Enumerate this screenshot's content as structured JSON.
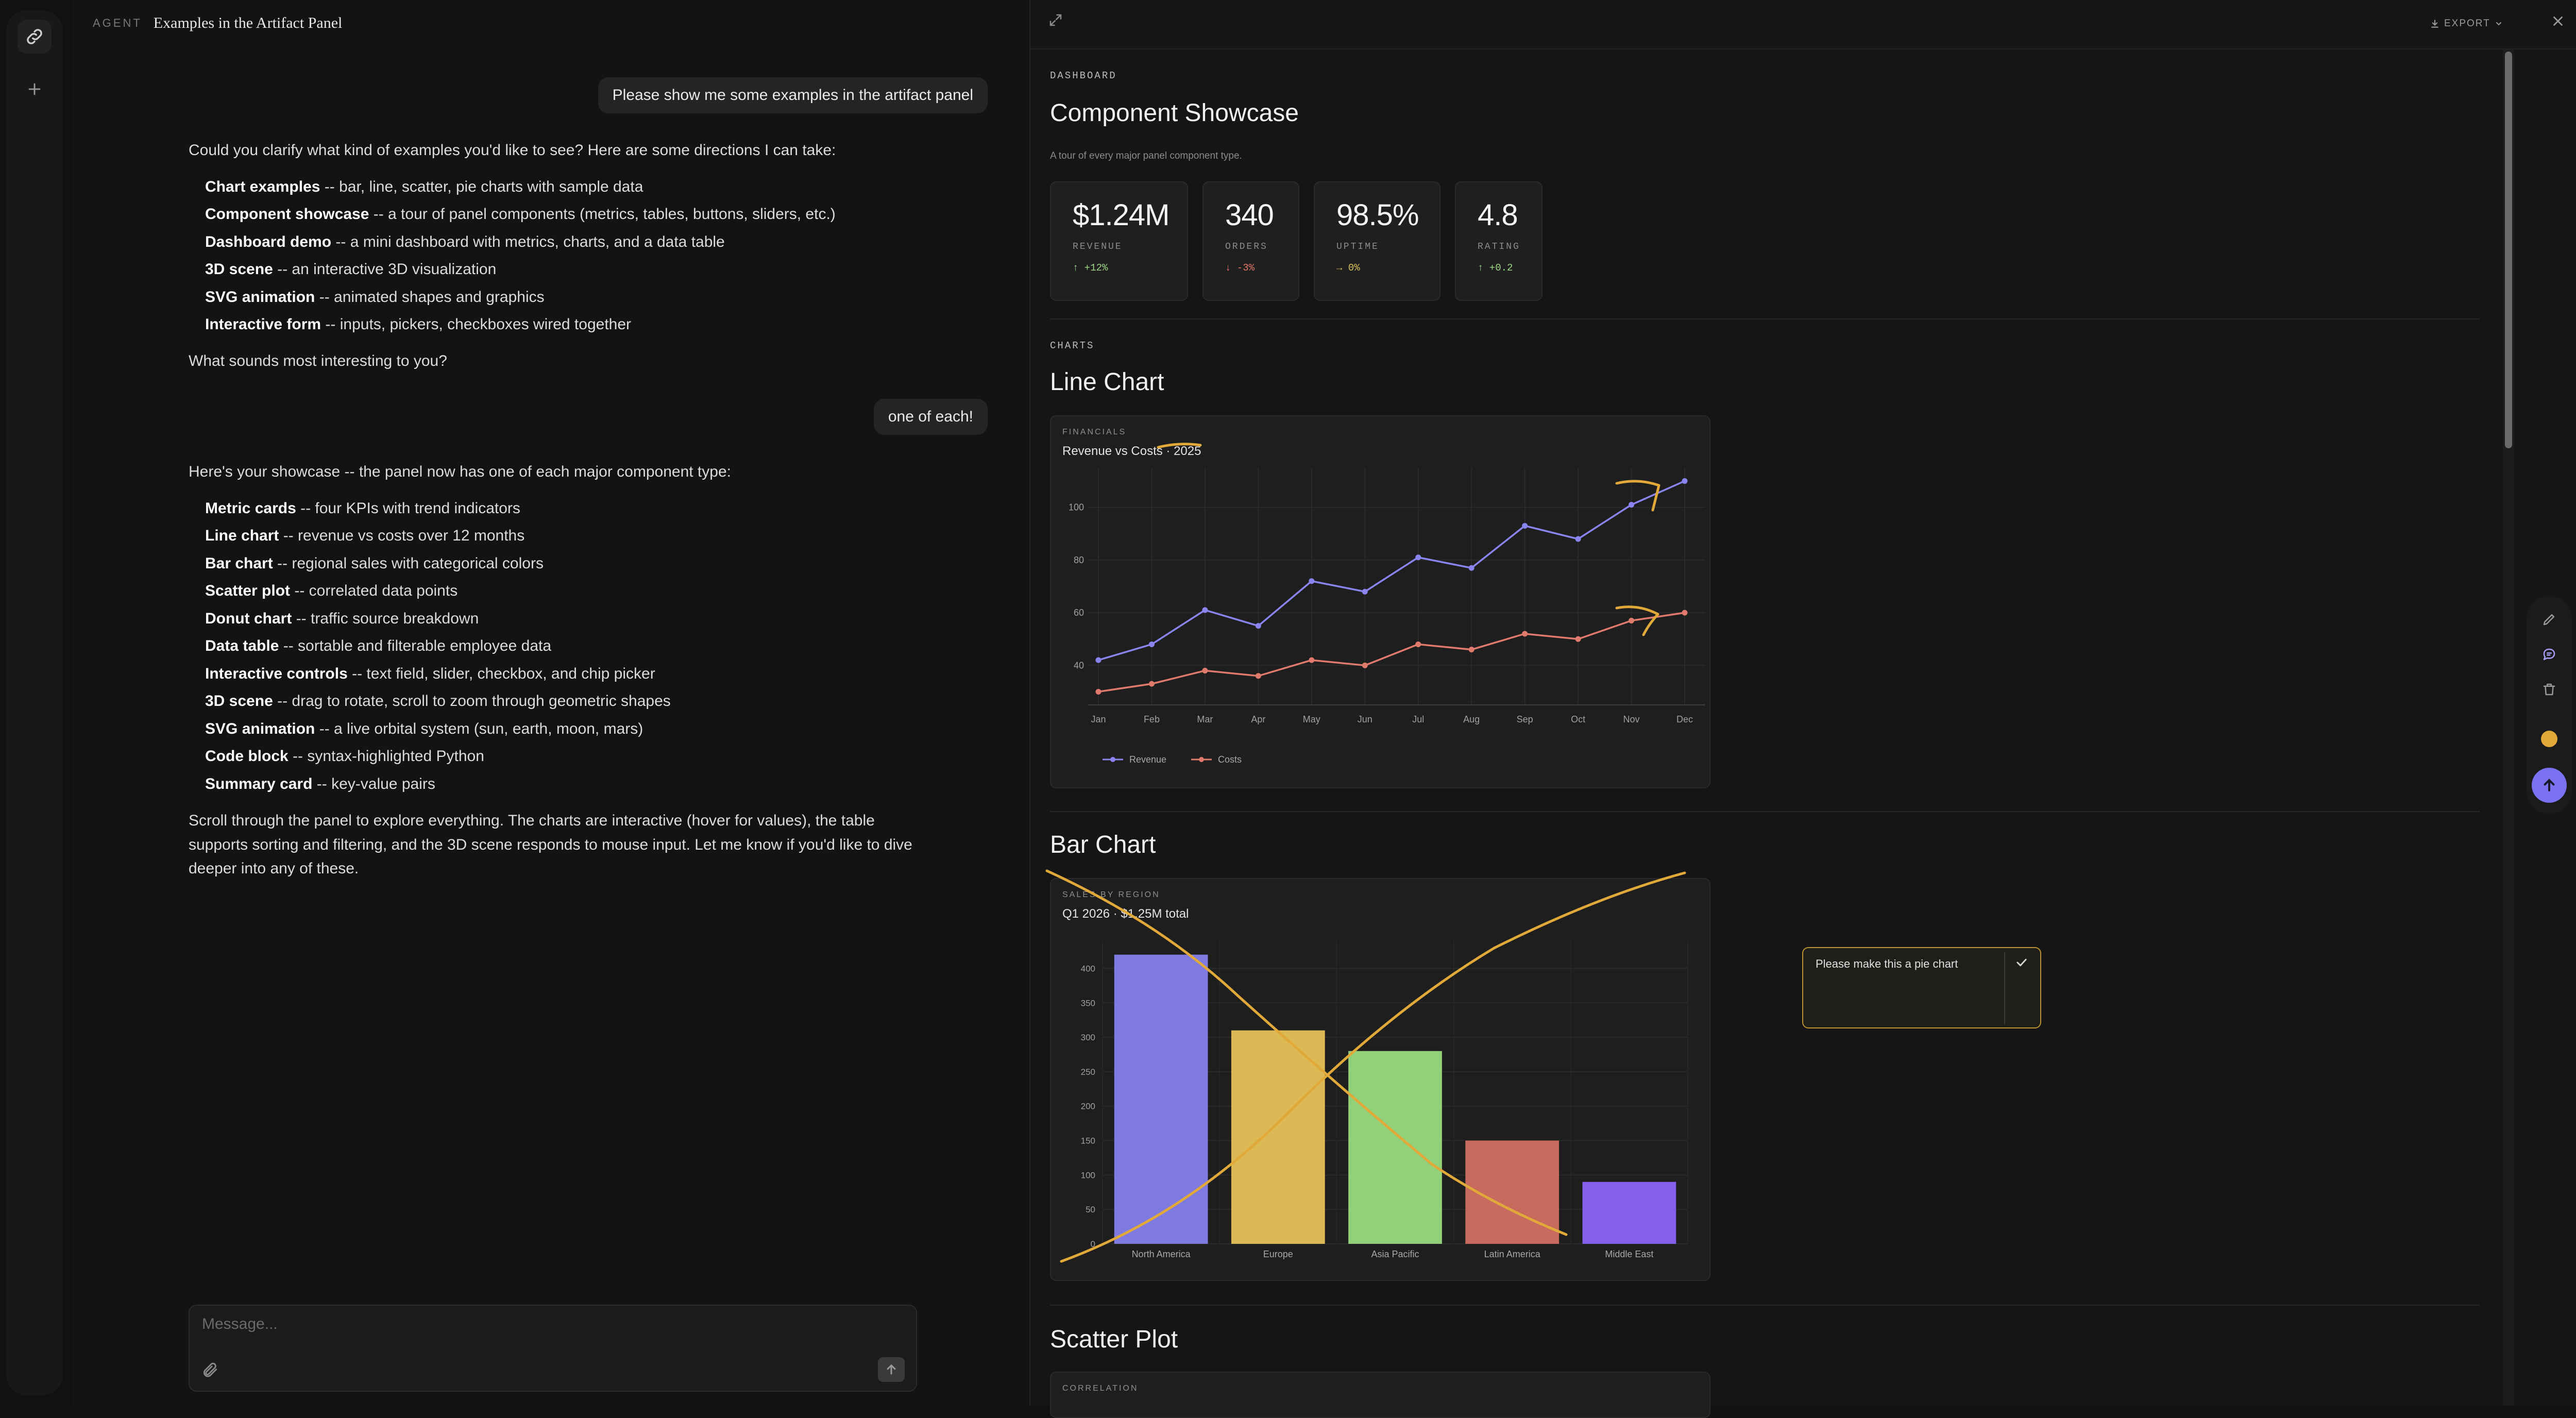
{
  "chat": {
    "agent_label": "AGENT",
    "title": "Examples in the Artifact Panel",
    "user_message_1": "Please show me some examples in the artifact panel",
    "assistant_1": {
      "intro": "Could you clarify what kind of examples you'd like to see? Here are some directions I can take:",
      "items": [
        {
          "bold": "Chart examples",
          "rest": " -- bar, line, scatter, pie charts with sample data"
        },
        {
          "bold": "Component showcase",
          "rest": " -- a tour of panel components (metrics, tables, buttons, sliders, etc.)"
        },
        {
          "bold": "Dashboard demo",
          "rest": " -- a mini dashboard with metrics, charts, and a data table"
        },
        {
          "bold": "3D scene",
          "rest": " -- an interactive 3D visualization"
        },
        {
          "bold": "SVG animation",
          "rest": " -- animated shapes and graphics"
        },
        {
          "bold": "Interactive form",
          "rest": " -- inputs, pickers, checkboxes wired together"
        }
      ],
      "outro": "What sounds most interesting to you?"
    },
    "user_message_2": "one of each!",
    "assistant_2": {
      "intro": "Here's your showcase -- the panel now has one of each major component type:",
      "items": [
        {
          "bold": "Metric cards",
          "rest": " -- four KPIs with trend indicators"
        },
        {
          "bold": "Line chart",
          "rest": " -- revenue vs costs over 12 months"
        },
        {
          "bold": "Bar chart",
          "rest": " -- regional sales with categorical colors"
        },
        {
          "bold": "Scatter plot",
          "rest": " -- correlated data points"
        },
        {
          "bold": "Donut chart",
          "rest": " -- traffic source breakdown"
        },
        {
          "bold": "Data table",
          "rest": " -- sortable and filterable employee data"
        },
        {
          "bold": "Interactive controls",
          "rest": " -- text field, slider, checkbox, and chip picker"
        },
        {
          "bold": "3D scene",
          "rest": " -- drag to rotate, scroll to zoom through geometric shapes"
        },
        {
          "bold": "SVG animation",
          "rest": " -- a live orbital system (sun, earth, moon, mars)"
        },
        {
          "bold": "Code block",
          "rest": " -- syntax-highlighted Python"
        },
        {
          "bold": "Summary card",
          "rest": " -- key-value pairs"
        }
      ],
      "outro": "Scroll through the panel to explore everything. The charts are interactive (hover for values), the table supports sorting and filtering, and the 3D scene responds to mouse input. Let me know if you'd like to dive deeper into any of these."
    },
    "input_placeholder": "Message..."
  },
  "panel": {
    "export_label": "EXPORT",
    "dashboard_kicker": "DASHBOARD",
    "title": "Component Showcase",
    "subtitle": "A tour of every major panel component type.",
    "metrics": [
      {
        "value": "$1.24M",
        "label": "REVENUE",
        "delta": "↑ +12%",
        "color": "#9fd889"
      },
      {
        "value": "340",
        "label": "ORDERS",
        "delta": "↓ -3%",
        "color": "#e5786a"
      },
      {
        "value": "98.5%",
        "label": "UPTIME",
        "delta": "→ 0%",
        "color": "#d9c25a"
      },
      {
        "value": "4.8",
        "label": "RATING",
        "delta": "↑ +0.2",
        "color": "#9fd889"
      }
    ],
    "charts_kicker": "CHARTS",
    "line_section_title": "Line Chart",
    "bar_section_title": "Bar Chart",
    "scatter_section_title": "Scatter Plot",
    "comment": "Please make this a pie chart",
    "accent_color": "#7a72f0",
    "annotation_color": "#e0a93a"
  },
  "chart_data": [
    {
      "type": "line",
      "kicker": "FINANCIALS",
      "title": "Revenue vs Costs · 2025",
      "categories": [
        "Jan",
        "Feb",
        "Mar",
        "Apr",
        "May",
        "Jun",
        "Jul",
        "Aug",
        "Sep",
        "Oct",
        "Nov",
        "Dec"
      ],
      "series": [
        {
          "name": "Revenue",
          "color": "#8a84ee",
          "values": [
            42,
            48,
            61,
            55,
            72,
            68,
            81,
            77,
            93,
            88,
            101,
            110
          ]
        },
        {
          "name": "Costs",
          "color": "#e07a6c",
          "values": [
            30,
            33,
            38,
            36,
            42,
            40,
            48,
            46,
            52,
            50,
            57,
            60
          ]
        }
      ],
      "yticks": [
        40,
        60,
        80,
        100
      ],
      "ylim": [
        25,
        115
      ],
      "grid": true,
      "legend": "bottom-left"
    },
    {
      "type": "bar",
      "kicker": "SALES BY REGION",
      "title": "Q1 2026 · $1.25M total",
      "categories": [
        "North America",
        "Europe",
        "Asia Pacific",
        "Latin America",
        "Middle East"
      ],
      "values": [
        420,
        310,
        280,
        150,
        90
      ],
      "colors": [
        "#7f7ae0",
        "#dcb955",
        "#93d07a",
        "#c86a5e",
        "#8460ea"
      ],
      "yticks": [
        0,
        50,
        100,
        150,
        200,
        250,
        300,
        350,
        400
      ],
      "ylim": [
        0,
        440
      ],
      "grid": true
    },
    {
      "type": "scatter",
      "kicker": "CORRELATION"
    }
  ]
}
